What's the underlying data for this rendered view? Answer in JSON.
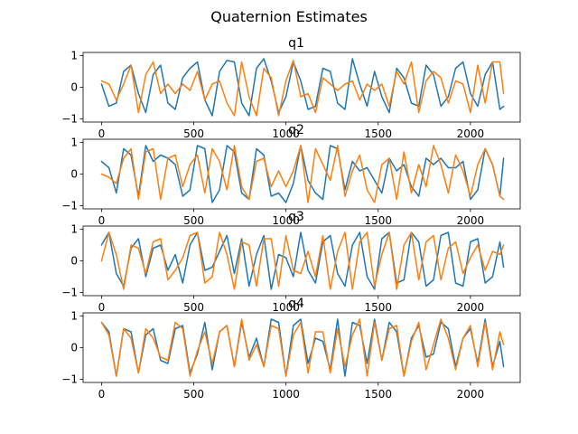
{
  "chart_data": {
    "type": "line",
    "title": "Quaternion Estimates",
    "xlim": [
      -100,
      2270
    ],
    "colors": {
      "measured": "#1f77b4",
      "estimate": "#ff7f0e"
    },
    "xticks": [
      0,
      500,
      1000,
      1500,
      2000
    ],
    "xtick_labels": [
      "0",
      "500",
      "1000",
      "1500",
      "2000"
    ],
    "yticks": [
      -1,
      0,
      1
    ],
    "ytick_labels": [
      "−1",
      "0",
      "1"
    ],
    "panels": [
      {
        "title": "q1",
        "ylim": [
          -1.1,
          1.1
        ],
        "series": [
          {
            "color": "#1f77b4",
            "x": [
              0,
              40,
              80,
              120,
              160,
              200,
              240,
              280,
              320,
              360,
              400,
              440,
              480,
              520,
              560,
              600,
              640,
              680,
              720,
              760,
              800,
              840,
              880,
              920,
              960,
              1000,
              1040,
              1080,
              1120,
              1160,
              1200,
              1240,
              1280,
              1320,
              1360,
              1400,
              1440,
              1480,
              1520,
              1560,
              1600,
              1640,
              1680,
              1720,
              1760,
              1800,
              1840,
              1880,
              1920,
              1960,
              2000,
              2040,
              2080,
              2120,
              2160,
              2180
            ],
            "y": [
              0.1,
              -0.6,
              -0.5,
              0.5,
              0.7,
              -0.2,
              -0.8,
              0.4,
              0.7,
              -0.5,
              -0.7,
              0.3,
              0.6,
              0.8,
              -0.4,
              -0.9,
              0.5,
              0.85,
              0.8,
              -0.5,
              -0.9,
              0.6,
              0.9,
              0.2,
              -0.8,
              -0.3,
              0.8,
              0.2,
              -0.7,
              -0.6,
              0.6,
              0.5,
              -0.5,
              -0.7,
              0.9,
              0.1,
              -0.6,
              0.5,
              -0.3,
              -0.8,
              0.6,
              0.3,
              -0.5,
              -0.6,
              0.7,
              0.4,
              -0.6,
              -0.3,
              0.6,
              0.8,
              -0.2,
              -0.6,
              0.4,
              0.8,
              -0.7,
              -0.6
            ]
          },
          {
            "color": "#ff7f0e",
            "x": [
              0,
              40,
              80,
              120,
              160,
              200,
              240,
              280,
              320,
              360,
              400,
              440,
              480,
              520,
              560,
              600,
              640,
              680,
              720,
              760,
              800,
              840,
              880,
              920,
              960,
              1000,
              1040,
              1080,
              1120,
              1160,
              1200,
              1240,
              1280,
              1320,
              1360,
              1400,
              1440,
              1480,
              1520,
              1560,
              1600,
              1640,
              1680,
              1720,
              1760,
              1800,
              1840,
              1880,
              1920,
              1960,
              2000,
              2040,
              2080,
              2120,
              2160,
              2180
            ],
            "y": [
              0.2,
              0.1,
              -0.4,
              0.1,
              0.7,
              -0.8,
              0.4,
              0.8,
              -0.2,
              0.1,
              -0.2,
              0.1,
              -0.1,
              0.5,
              -0.4,
              0.1,
              0.2,
              -0.5,
              -0.9,
              0.8,
              -0.3,
              -0.9,
              0.6,
              0.3,
              -0.9,
              0.2,
              0.85,
              -0.3,
              -0.2,
              -0.8,
              0.3,
              0.1,
              -0.1,
              0.1,
              0.2,
              -0.4,
              0.1,
              -0.1,
              0.1,
              -0.6,
              0.5,
              0.1,
              0.8,
              -0.8,
              0.2,
              0.5,
              0.3,
              -0.5,
              0.2,
              0.1,
              -0.8,
              0.7,
              -0.5,
              0.8,
              0.8,
              -0.2
            ]
          }
        ]
      },
      {
        "title": "q2",
        "ylim": [
          -1.1,
          1.1
        ],
        "series": [
          {
            "color": "#1f77b4",
            "x": [
              0,
              40,
              80,
              120,
              160,
              200,
              240,
              280,
              320,
              360,
              400,
              440,
              480,
              520,
              560,
              600,
              640,
              680,
              720,
              760,
              800,
              840,
              880,
              920,
              960,
              1000,
              1040,
              1080,
              1120,
              1160,
              1200,
              1240,
              1280,
              1320,
              1360,
              1400,
              1440,
              1480,
              1520,
              1560,
              1600,
              1640,
              1680,
              1720,
              1760,
              1800,
              1840,
              1880,
              1920,
              1960,
              2000,
              2040,
              2080,
              2120,
              2160,
              2180
            ],
            "y": [
              0.4,
              0.2,
              -0.6,
              0.8,
              0.6,
              -0.7,
              0.9,
              0.4,
              0.6,
              0.5,
              0.3,
              -0.7,
              -0.5,
              0.9,
              0.8,
              -0.9,
              -0.5,
              0.9,
              0.7,
              -0.6,
              -0.8,
              0.8,
              0.6,
              -0.7,
              -0.6,
              -0.9,
              -0.3,
              0.9,
              -0.2,
              -0.6,
              -0.8,
              0.9,
              0.8,
              -0.5,
              0.4,
              0.1,
              0.2,
              -0.2,
              -0.6,
              0.5,
              0.1,
              0.3,
              -0.4,
              -0.7,
              0.5,
              0.3,
              0.5,
              0.2,
              0.2,
              0.4,
              -0.8,
              -0.5,
              0.8,
              0.3,
              -0.7,
              0.5
            ]
          },
          {
            "color": "#ff7f0e",
            "x": [
              0,
              40,
              80,
              120,
              160,
              200,
              240,
              280,
              320,
              360,
              400,
              440,
              480,
              520,
              560,
              600,
              640,
              680,
              720,
              760,
              800,
              840,
              880,
              920,
              960,
              1000,
              1040,
              1080,
              1120,
              1160,
              1200,
              1240,
              1280,
              1320,
              1360,
              1400,
              1440,
              1480,
              1520,
              1560,
              1600,
              1640,
              1680,
              1720,
              1760,
              1800,
              1840,
              1880,
              1920,
              1960,
              2000,
              2040,
              2080,
              2120,
              2160,
              2180
            ],
            "y": [
              0.0,
              -0.1,
              -0.3,
              0.5,
              0.8,
              -0.8,
              0.7,
              0.8,
              -0.8,
              0.5,
              0.6,
              -0.4,
              0.3,
              0.6,
              -0.6,
              0.8,
              0.4,
              -0.5,
              0.9,
              -0.4,
              -0.8,
              0.4,
              0.5,
              -0.4,
              0.1,
              -0.4,
              0.1,
              0.9,
              -0.9,
              0.8,
              0.3,
              -0.2,
              0.9,
              -0.7,
              0.1,
              0.6,
              -0.5,
              -0.9,
              0.3,
              0.5,
              -0.8,
              0.7,
              -0.6,
              0.3,
              -0.4,
              0.9,
              0.3,
              -0.6,
              0.6,
              0.1,
              -0.7,
              0.3,
              0.8,
              0.3,
              -0.7,
              -0.8
            ]
          }
        ]
      },
      {
        "title": "q3",
        "ylim": [
          -1.1,
          1.1
        ],
        "series": [
          {
            "color": "#1f77b4",
            "x": [
              0,
              40,
              80,
              120,
              160,
              200,
              240,
              280,
              320,
              360,
              400,
              440,
              480,
              520,
              560,
              600,
              640,
              680,
              720,
              760,
              800,
              840,
              880,
              920,
              960,
              1000,
              1040,
              1080,
              1120,
              1160,
              1200,
              1240,
              1280,
              1320,
              1360,
              1400,
              1440,
              1480,
              1520,
              1560,
              1600,
              1640,
              1680,
              1720,
              1760,
              1800,
              1840,
              1880,
              1920,
              1960,
              2000,
              2040,
              2080,
              2120,
              2160,
              2180
            ],
            "y": [
              0.5,
              0.9,
              -0.4,
              -0.8,
              0.4,
              0.7,
              -0.5,
              0.4,
              0.5,
              -0.3,
              0.2,
              -0.7,
              0.5,
              0.9,
              -0.3,
              -0.2,
              0.3,
              0.8,
              -0.4,
              0.7,
              -0.8,
              0.2,
              0.8,
              -0.9,
              0.2,
              0.1,
              -0.5,
              0.9,
              -0.3,
              -0.7,
              0.6,
              0.8,
              -0.4,
              -0.8,
              0.5,
              0.9,
              -0.5,
              -0.9,
              0.7,
              0.9,
              -0.7,
              -0.6,
              0.9,
              0.6,
              -0.8,
              -0.6,
              0.8,
              0.9,
              -0.7,
              -0.8,
              0.6,
              0.7,
              -0.7,
              -0.5,
              0.6,
              -0.2
            ]
          },
          {
            "color": "#ff7f0e",
            "x": [
              0,
              40,
              80,
              120,
              160,
              200,
              240,
              280,
              320,
              360,
              400,
              440,
              480,
              520,
              560,
              600,
              640,
              680,
              720,
              760,
              800,
              840,
              880,
              920,
              960,
              1000,
              1040,
              1080,
              1120,
              1160,
              1200,
              1240,
              1280,
              1320,
              1360,
              1400,
              1440,
              1480,
              1520,
              1560,
              1600,
              1640,
              1680,
              1720,
              1760,
              1800,
              1840,
              1880,
              1920,
              1960,
              2000,
              2040,
              2080,
              2120,
              2160,
              2180
            ],
            "y": [
              0.0,
              0.9,
              0.2,
              -0.9,
              0.5,
              0.4,
              -0.4,
              0.6,
              0.7,
              -0.6,
              -0.3,
              0.1,
              0.8,
              0.9,
              -0.7,
              -0.5,
              0.9,
              0.2,
              -0.9,
              0.6,
              0.5,
              -0.8,
              0.7,
              0.7,
              -0.8,
              0.8,
              -0.3,
              -0.4,
              0.3,
              -0.5,
              0.8,
              -0.9,
              0.3,
              0.9,
              -0.9,
              0.6,
              0.9,
              -0.8,
              0.2,
              0.9,
              -0.9,
              0.5,
              0.9,
              -0.6,
              0.6,
              0.8,
              -0.6,
              0.4,
              0.6,
              -0.4,
              0.1,
              0.5,
              -0.3,
              0.3,
              0.2,
              0.5
            ]
          }
        ]
      },
      {
        "title": "q4",
        "ylim": [
          -1.1,
          1.1
        ],
        "series": [
          {
            "color": "#1f77b4",
            "x": [
              0,
              40,
              80,
              120,
              160,
              200,
              240,
              280,
              320,
              360,
              400,
              440,
              480,
              520,
              560,
              600,
              640,
              680,
              720,
              760,
              800,
              840,
              880,
              920,
              960,
              1000,
              1040,
              1080,
              1120,
              1160,
              1200,
              1240,
              1280,
              1320,
              1360,
              1400,
              1440,
              1480,
              1520,
              1560,
              1600,
              1640,
              1680,
              1720,
              1760,
              1800,
              1840,
              1880,
              1920,
              1960,
              2000,
              2040,
              2080,
              2120,
              2160,
              2180
            ],
            "y": [
              0.8,
              0.5,
              -0.9,
              0.6,
              0.5,
              -0.8,
              0.4,
              0.6,
              -0.4,
              -0.5,
              0.6,
              0.7,
              -0.8,
              -0.2,
              0.8,
              -0.7,
              0.5,
              0.7,
              -0.6,
              0.8,
              -0.3,
              0.3,
              -0.6,
              0.9,
              0.8,
              -0.9,
              0.7,
              0.9,
              -0.5,
              0.3,
              0.2,
              -0.7,
              0.9,
              -0.9,
              0.8,
              0.7,
              -0.5,
              0.9,
              -0.4,
              0.8,
              0.5,
              -0.9,
              0.3,
              0.7,
              -0.3,
              -0.2,
              0.8,
              0.6,
              -0.6,
              0.3,
              0.6,
              -0.5,
              0.9,
              -0.6,
              0.2,
              -0.6
            ]
          },
          {
            "color": "#ff7f0e",
            "x": [
              0,
              40,
              80,
              120,
              160,
              200,
              240,
              280,
              320,
              360,
              400,
              440,
              480,
              520,
              560,
              600,
              640,
              680,
              720,
              760,
              800,
              840,
              880,
              920,
              960,
              1000,
              1040,
              1080,
              1120,
              1160,
              1200,
              1240,
              1280,
              1320,
              1360,
              1400,
              1440,
              1480,
              1520,
              1560,
              1600,
              1640,
              1680,
              1720,
              1760,
              1800,
              1840,
              1880,
              1920,
              1960,
              2000,
              2040,
              2080,
              2120,
              2160,
              2180
            ],
            "y": [
              0.8,
              0.4,
              -0.9,
              0.6,
              0.3,
              -0.8,
              0.6,
              0.3,
              -0.3,
              -0.4,
              0.8,
              0.6,
              -0.9,
              -0.1,
              0.5,
              -0.5,
              0.5,
              0.7,
              -0.6,
              0.9,
              -0.4,
              0.1,
              -0.6,
              0.7,
              0.6,
              -0.9,
              0.4,
              0.8,
              -0.8,
              0.5,
              0.5,
              -0.8,
              0.6,
              -0.6,
              0.4,
              0.9,
              -0.9,
              0.8,
              -0.4,
              0.6,
              0.7,
              -0.9,
              0.2,
              0.8,
              -0.7,
              0.1,
              0.9,
              0.3,
              -0.7,
              0.3,
              0.7,
              -0.6,
              0.8,
              -0.7,
              0.5,
              0.1
            ]
          }
        ]
      }
    ]
  }
}
